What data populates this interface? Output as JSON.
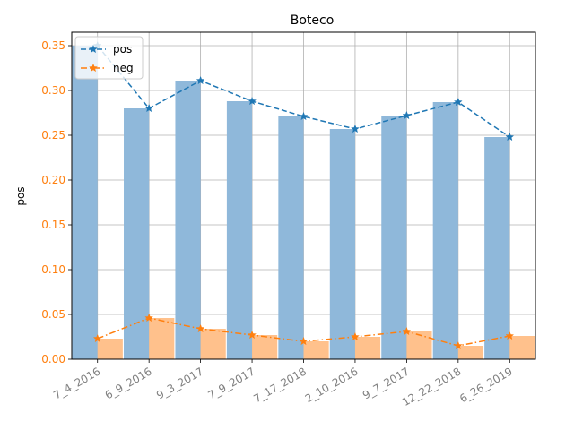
{
  "chart_data": {
    "type": "bar",
    "title": "Boteco",
    "xlabel": "",
    "ylabel": "pos",
    "categories": [
      "7_4_2016",
      "6_9_2016",
      "9_3_2017",
      "7_9_2017",
      "7_17_2018",
      "2_10_2016",
      "9_7_2017",
      "12_22_2018",
      "6_26_2019"
    ],
    "ylim": [
      0,
      0.365
    ],
    "yticks": [
      "0.00",
      "0.05",
      "0.10",
      "0.15",
      "0.20",
      "0.25",
      "0.30",
      "0.35"
    ],
    "grid": true,
    "legend_position": "top-left",
    "series": [
      {
        "name": "pos",
        "values": [
          0.35,
          0.28,
          0.311,
          0.288,
          0.271,
          0.257,
          0.272,
          0.287,
          0.248
        ],
        "bar_color": "#8fb8da",
        "line_color": "#1f77b4",
        "line_style": "dashed",
        "marker": "star"
      },
      {
        "name": "neg",
        "values": [
          0.023,
          0.046,
          0.034,
          0.027,
          0.02,
          0.025,
          0.031,
          0.015,
          0.026
        ],
        "bar_color": "#ffbe86",
        "line_color": "#ff7f0e",
        "line_style": "dashdot",
        "marker": "star"
      }
    ],
    "tick_label_color_y": "#ff7f0e",
    "tick_label_color_x": "#808080"
  }
}
